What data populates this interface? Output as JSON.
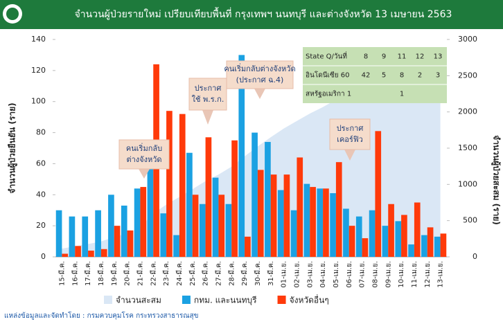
{
  "chart_data": {
    "type": "bar",
    "title": "จำนวนผู้ป่วยรายใหม่ เปรียบเทียบพื้นที่ กรุงเทพฯ นนทบุรี และต่างจังหวัด 13 เมษายน 2563",
    "ylabel": "จำนวนผู้ป่วยยืนยัน (ราย)",
    "y2label": "จำนวนผู้ป่วยสะสม (ราย)",
    "categories": [
      "15-มี.ค.",
      "16-มี.ค.",
      "17-มี.ค.",
      "18-มี.ค.",
      "19-มี.ค.",
      "20-มี.ค.",
      "21-มี.ค.",
      "22-มี.ค.",
      "23-มี.ค.",
      "24-มี.ค.",
      "25-มี.ค.",
      "26-มี.ค.",
      "27-มี.ค.",
      "28-มี.ค.",
      "29-มี.ค.",
      "30-มี.ค.",
      "31-มี.ค.",
      "01-เม.ย.",
      "02-เม.ย.",
      "03-เม.ย.",
      "04-เม.ย.",
      "05-เม.ย.",
      "06-เม.ย.",
      "07-เม.ย.",
      "08-เม.ย.",
      "09-เม.ย.",
      "10-เม.ย.",
      "11-เม.ย.",
      "12-เม.ย.",
      "13-เม.ย."
    ],
    "series": [
      {
        "name": "จำนวนสะสม",
        "type": "area",
        "axis": "y2",
        "color": "#dae7f5",
        "values": [
          114,
          147,
          177,
          212,
          272,
          322,
          411,
          599,
          721,
          827,
          934,
          1045,
          1136,
          1245,
          1388,
          1524,
          1651,
          1771,
          1875,
          1978,
          2067,
          2169,
          2220,
          2258,
          2369,
          2423,
          2473,
          2518,
          2551,
          2579
        ]
      },
      {
        "name": "กทม. และนนทบุรี",
        "color": "#1ba1e2",
        "values": [
          30,
          26,
          26,
          30,
          40,
          33,
          44,
          64,
          28,
          14,
          67,
          34,
          51,
          34,
          130,
          80,
          74,
          43,
          30,
          47,
          44,
          41,
          31,
          26,
          30,
          20,
          23,
          8,
          14,
          13
        ]
      },
      {
        "name": "จังหวัดอื่นๆ",
        "color": "#ff3a0a",
        "values": [
          2,
          7,
          4,
          5,
          20,
          17,
          45,
          124,
          94,
          92,
          40,
          77,
          40,
          75,
          13,
          56,
          53,
          53,
          64,
          45,
          44,
          61,
          20,
          12,
          81,
          34,
          27,
          35,
          19,
          15
        ]
      }
    ],
    "ylim": [
      0,
      140
    ],
    "yticks": [
      0,
      20,
      40,
      60,
      80,
      100,
      120,
      140
    ],
    "y2lim": [
      0,
      3000
    ],
    "y2ticks": [
      0,
      500,
      1000,
      1500,
      2000,
      2500,
      3000
    ],
    "annotations": [
      [
        "คนเริ่มกลับ",
        "ต่างจังหวัด"
      ],
      [
        "ประกาศ",
        "ใช้ พ.ร.ก."
      ],
      [
        "คนเริ่มกลับต่างจังหวัด",
        "(ประกาศ ฉ.4)"
      ],
      [
        "ประกาศ",
        "เคอร์ฟิว"
      ]
    ],
    "table": {
      "header": [
        "State Q/วันที่",
        8,
        9,
        11,
        12,
        13
      ],
      "rows": [
        [
          "อินโดนีเซีย 60",
          42,
          5,
          8,
          2,
          3
        ],
        [
          "สหรัฐอเมริกา 1",
          null,
          null,
          1,
          null,
          null
        ]
      ]
    },
    "source": "แหล่งข้อมูลและจัดทำโดย : กรมควบคุมโรค กระทรวงสาธารณสุข"
  }
}
